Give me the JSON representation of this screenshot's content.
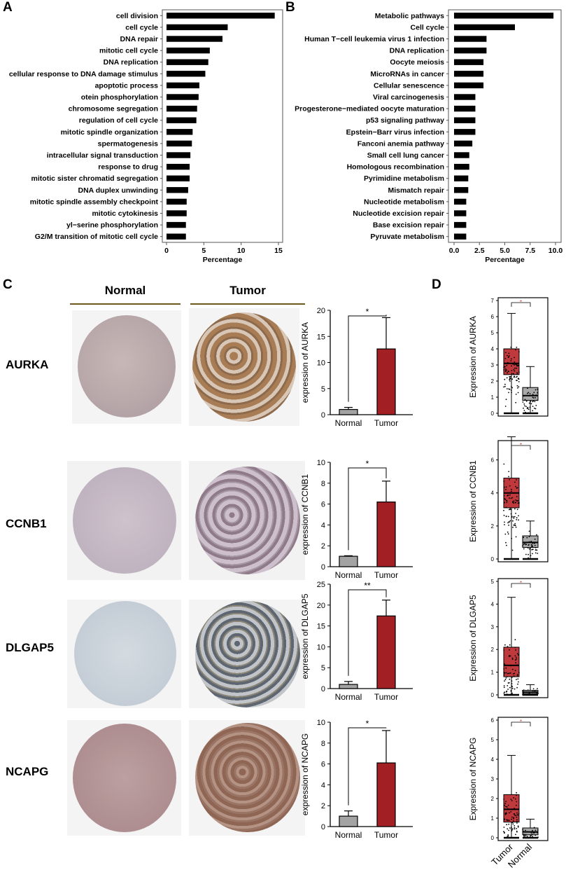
{
  "panels": {
    "a": "A",
    "b": "B",
    "c": "C",
    "d": "D"
  },
  "ihc": {
    "headers": {
      "normal": "Normal",
      "tumor": "Tumor"
    },
    "genes": [
      "AURKA",
      "CCNB1",
      "DLGAP5",
      "NCAPG"
    ]
  },
  "chart_data": [
    {
      "panel": "A",
      "type": "bar",
      "orientation": "horizontal",
      "categories": [
        "cell division",
        "cell cycle",
        "DNA repair",
        "mitotic cell cycle",
        "DNA replication",
        "cellular response to DNA damage stimulus",
        "apoptotic process",
        "otein phosphorylation",
        "chromosome segregation",
        "regulation of cell cycle",
        "mitotic spindle organization",
        "spermatogenesis",
        "intracellular signal transduction",
        "response to drug",
        "mitotic sister chromatid segregation",
        "DNA duplex unwinding",
        "mitotic spindle assembly checkpoint",
        "mitotic cytokinesis",
        "yl−serine phosphorylation",
        "G2/M transition of mitotic cell cycle"
      ],
      "values": [
        14.5,
        8.2,
        7.5,
        5.8,
        5.6,
        5.2,
        4.4,
        4.3,
        4.1,
        4.0,
        3.5,
        3.4,
        3.2,
        3.1,
        3.1,
        2.9,
        2.7,
        2.7,
        2.6,
        2.6
      ],
      "xlabel": "Percentage",
      "xlim": [
        0,
        15
      ],
      "xticks": [
        0,
        5,
        10,
        15
      ]
    },
    {
      "panel": "B",
      "type": "bar",
      "orientation": "horizontal",
      "categories": [
        "Metabolic pathways",
        "Cell cycle",
        "Human T−cell leukemia virus 1 infection",
        "DNA replication",
        "Oocyte meiosis",
        "MicroRNAs in cancer",
        "Cellular senescence",
        "Viral carcinogenesis",
        "Progesterone−mediated oocyte maturation",
        "p53 signaling pathway",
        "Epstein−Barr virus infection",
        "Fanconi anemia pathway",
        "Small cell lung cancer",
        "Homologous recombination",
        "Pyrimidine metabolism",
        "Mismatch repair",
        "Nucleotide metabolism",
        "Nucleotide excision repair",
        "Base excision repair",
        "Pyruvate metabolism"
      ],
      "values": [
        9.8,
        6.0,
        3.2,
        3.2,
        2.9,
        2.9,
        2.9,
        2.1,
        2.1,
        2.1,
        2.1,
        1.8,
        1.5,
        1.5,
        1.4,
        1.4,
        1.2,
        1.2,
        1.2,
        1.2
      ],
      "xlabel": "Percentage",
      "xlim": [
        0,
        10
      ],
      "xticks": [
        "0.0",
        "2.5",
        "5.0",
        "7.5",
        "10.0"
      ]
    },
    {
      "panel": "C",
      "type": "bar",
      "categories": [
        "Normal",
        "Tumor"
      ],
      "plots": [
        {
          "ylabel": "expression of AURKA",
          "ylim": [
            0,
            20
          ],
          "yticks": [
            0,
            5,
            10,
            15,
            20
          ],
          "values": [
            1.0,
            12.6
          ],
          "errors": [
            0.4,
            6.0
          ],
          "sig": "*"
        },
        {
          "ylabel": "expression of CCNB1",
          "ylim": [
            0,
            10
          ],
          "yticks": [
            0,
            2,
            4,
            6,
            8,
            10
          ],
          "values": [
            1.0,
            6.2
          ],
          "errors": [
            0.05,
            2.0
          ],
          "sig": "*"
        },
        {
          "ylabel": "expression of DLGAP5",
          "ylim": [
            0,
            25
          ],
          "yticks": [
            0,
            5,
            10,
            15,
            20,
            25
          ],
          "values": [
            1.0,
            17.4
          ],
          "errors": [
            0.7,
            3.8
          ],
          "sig": "**"
        },
        {
          "ylabel": "expression of NCAPG",
          "ylim": [
            0,
            10
          ],
          "yticks": [
            0,
            2,
            4,
            6,
            8,
            10
          ],
          "values": [
            1.0,
            6.1
          ],
          "errors": [
            0.5,
            3.1
          ],
          "sig": "*"
        }
      ],
      "colors": {
        "normal": "#a3a3a3",
        "tumor": "#a21f24"
      }
    },
    {
      "panel": "D",
      "type": "box",
      "categories": [
        "Tumor",
        "Normal"
      ],
      "plots": [
        {
          "ylabel": "Expression of  AURKA",
          "ylim": [
            0,
            7
          ],
          "yticks": [
            0,
            1,
            2,
            3,
            4,
            5,
            6,
            7
          ],
          "tumor": {
            "whisker_low": 0.0,
            "q1": 2.4,
            "median": 3.1,
            "q3": 4.0,
            "whisker_high": 6.2
          },
          "normal": {
            "whisker_low": 0.0,
            "q1": 0.8,
            "median": 1.1,
            "q3": 1.6,
            "whisker_high": 2.9
          }
        },
        {
          "ylabel": "Expression of  CCNB1",
          "ylim": [
            0,
            7
          ],
          "yticks": [
            0,
            2,
            4,
            6
          ],
          "tumor": {
            "whisker_low": 0.0,
            "q1": 3.1,
            "median": 4.0,
            "q3": 4.9,
            "whisker_high": 7.4
          },
          "normal": {
            "whisker_low": 0.0,
            "q1": 0.7,
            "median": 1.0,
            "q3": 1.4,
            "whisker_high": 2.3
          }
        },
        {
          "ylabel": "Expression of  DLGAP5",
          "ylim": [
            0,
            5
          ],
          "yticks": [
            0,
            1,
            2,
            3,
            4,
            5
          ],
          "tumor": {
            "whisker_low": 0.0,
            "q1": 0.8,
            "median": 1.3,
            "q3": 2.1,
            "whisker_high": 4.3
          },
          "normal": {
            "whisker_low": 0.0,
            "q1": 0.05,
            "median": 0.12,
            "q3": 0.2,
            "whisker_high": 0.45
          }
        },
        {
          "ylabel": "Expression of  NCAPG",
          "ylim": [
            0,
            6
          ],
          "yticks": [
            0,
            1,
            2,
            3,
            4,
            5,
            6
          ],
          "tumor": {
            "whisker_low": 0.0,
            "q1": 0.8,
            "median": 1.45,
            "q3": 2.2,
            "whisker_high": 4.2
          },
          "normal": {
            "whisker_low": 0.0,
            "q1": 0.15,
            "median": 0.3,
            "q3": 0.5,
            "whisker_high": 0.95
          }
        }
      ],
      "sig": "*",
      "colors": {
        "tumor": "#c0393c",
        "normal": "#a9a9a9"
      }
    }
  ]
}
